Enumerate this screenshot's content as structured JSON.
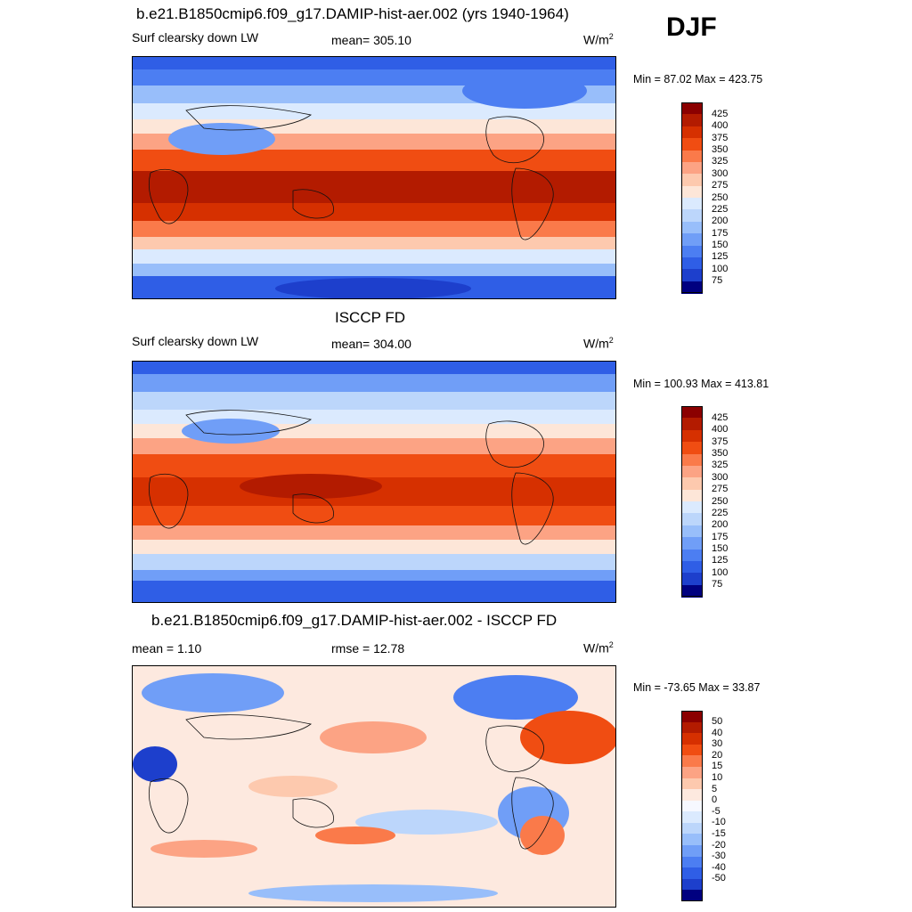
{
  "season": "DJF",
  "palettes": {
    "abs": [
      "#8b0000",
      "#b31b00",
      "#d63000",
      "#f04d12",
      "#fa7a4a",
      "#fca384",
      "#fdc9ae",
      "#fde6d8",
      "#dbeafe",
      "#bcd6fb",
      "#98befa",
      "#709ef7",
      "#4c7ef2",
      "#2f5ee6",
      "#1d3fcc",
      "#000080"
    ],
    "diff": [
      "#8b0000",
      "#b31b00",
      "#d63000",
      "#f04d12",
      "#fa7a4a",
      "#fca384",
      "#fdc9ae",
      "#fde9df",
      "#f6f8ff",
      "#dbeafe",
      "#bcd6fb",
      "#98befa",
      "#709ef7",
      "#4c7ef2",
      "#2f5ee6",
      "#1d3fcc",
      "#000080"
    ]
  },
  "panels": [
    {
      "title": "b.e21.B1850cmip6.f09_g17.DAMIP-hist-aer.002 (yrs 1940-1964)",
      "left_label": "Surf clearsky down LW",
      "center_label": "mean= 305.10",
      "units_base": "W/m",
      "units_sup": "2",
      "minmax": "Min =  87.02 Max = 423.75",
      "palette": "abs",
      "colorbar_labels": [
        "425",
        "400",
        "375",
        "350",
        "325",
        "300",
        "275",
        "250",
        "225",
        "200",
        "175",
        "150",
        "125",
        "100",
        "75"
      ]
    },
    {
      "title": "ISCCP FD",
      "left_label": "Surf clearsky down LW",
      "center_label": "mean= 304.00",
      "units_base": "W/m",
      "units_sup": "2",
      "minmax": "Min = 100.93 Max = 413.81",
      "palette": "abs",
      "colorbar_labels": [
        "425",
        "400",
        "375",
        "350",
        "325",
        "300",
        "275",
        "250",
        "225",
        "200",
        "175",
        "150",
        "125",
        "100",
        "75"
      ]
    },
    {
      "title": "b.e21.B1850cmip6.f09_g17.DAMIP-hist-aer.002 - ISCCP FD",
      "left_label": "mean =   1.10",
      "center_label": "rmse =  12.78",
      "units_base": "W/m",
      "units_sup": "2",
      "minmax": "Min = -73.65 Max =  33.87",
      "palette": "diff",
      "colorbar_labels": [
        "50",
        "40",
        "30",
        "20",
        "15",
        "10",
        "5",
        "0",
        "-5",
        "-10",
        "-15",
        "-20",
        "-30",
        "-40",
        "-50"
      ]
    }
  ]
}
